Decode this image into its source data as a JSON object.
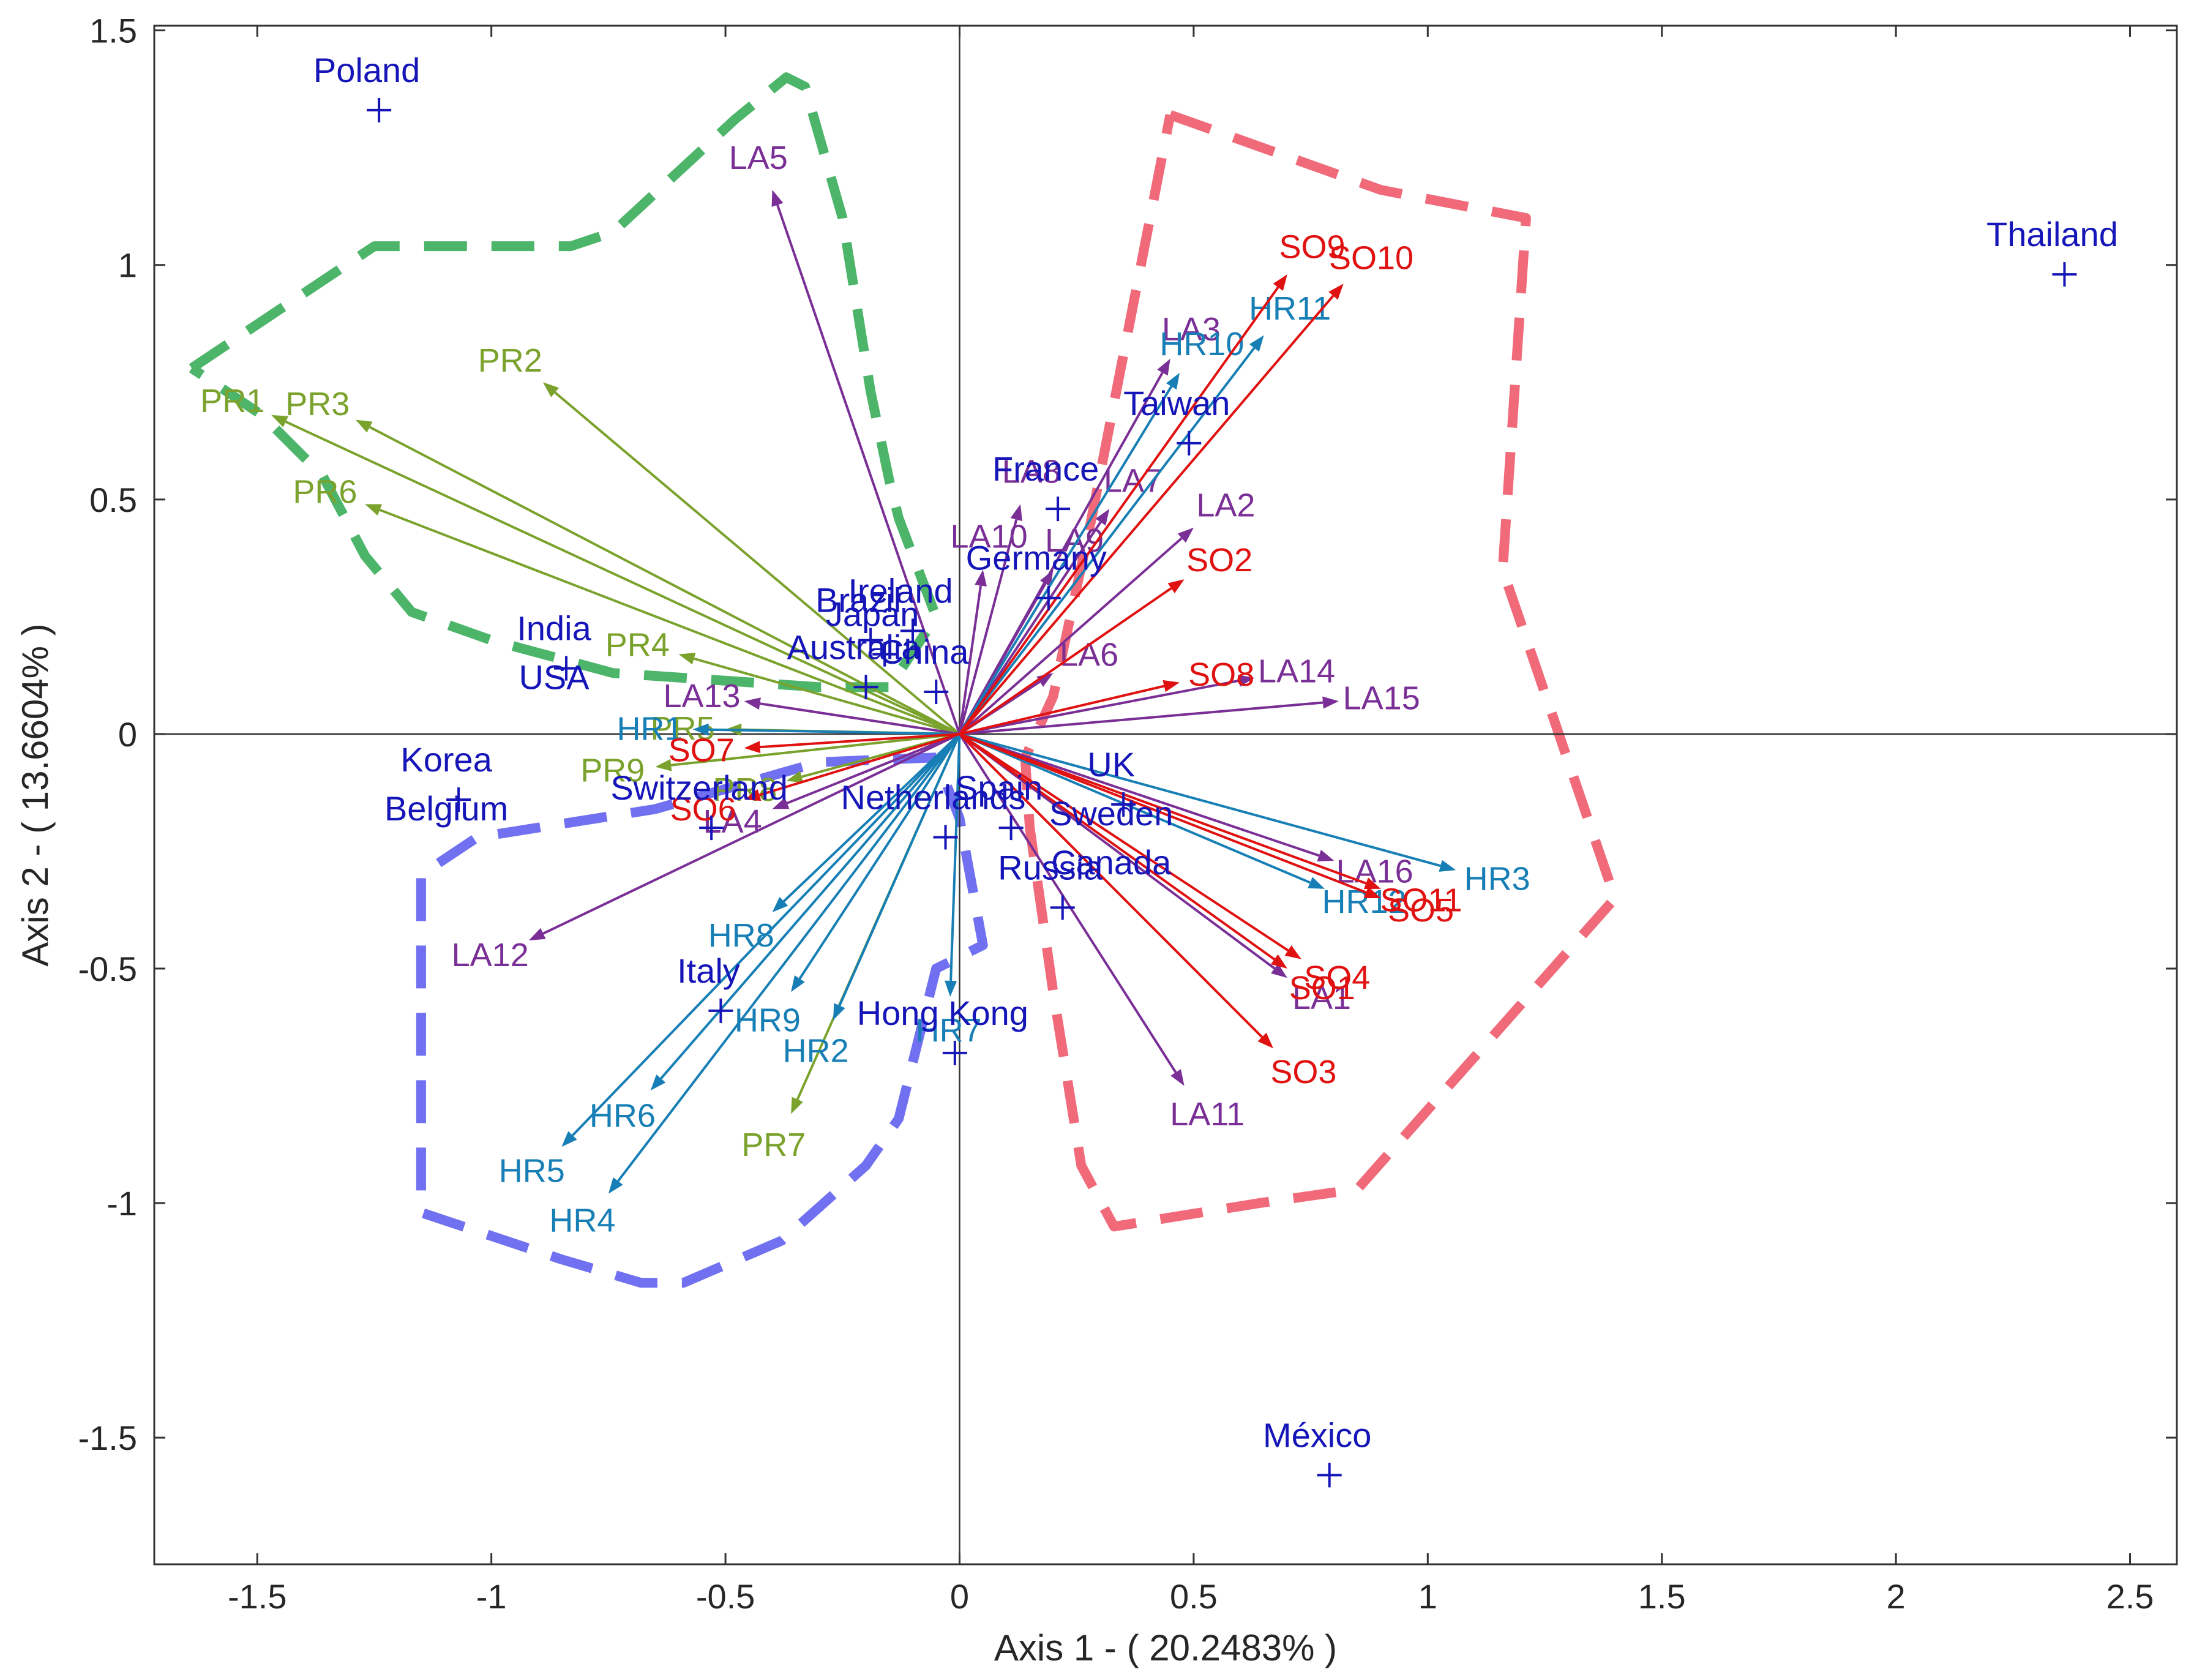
{
  "chart_data": {
    "type": "scatter",
    "subtype": "biplot",
    "xlabel": "Axis 1 - ( 20.2483% )",
    "ylabel": "Axis 2 - ( 13.6604% )",
    "xlim": [
      -1.72,
      2.6
    ],
    "ylim": [
      -1.77,
      1.51
    ],
    "xticks": [
      -1.5,
      -1,
      -0.5,
      0,
      0.5,
      1,
      1.5,
      2,
      2.5
    ],
    "yticks": [
      -1.5,
      -1,
      -0.5,
      0,
      0.5,
      1,
      1.5
    ],
    "grid": false,
    "zero_lines": true,
    "colors": {
      "country": "#1515b8",
      "PR": "#7aa22c",
      "LA": "#7a2f96",
      "HR": "#177fb5",
      "SO": "#e01111",
      "green_hull": "#4cb56a",
      "red_hull": "#f06a7a",
      "blue_hull": "#7070f0"
    },
    "countries": [
      {
        "label": "Poland",
        "x": -1.24,
        "y": 1.33
      },
      {
        "label": "Thailand",
        "x": 2.36,
        "y": 0.98
      },
      {
        "label": "India",
        "x": -0.84,
        "y": 0.14
      },
      {
        "label": "USA",
        "x": -0.84,
        "y": 0.14
      },
      {
        "label": "Korea",
        "x": -1.07,
        "y": -0.14
      },
      {
        "label": "Belgium",
        "x": -1.07,
        "y": -0.14
      },
      {
        "label": "Switzerland",
        "x": -0.53,
        "y": -0.2
      },
      {
        "label": "Ireland",
        "x": -0.1,
        "y": 0.22
      },
      {
        "label": "Brazil",
        "x": -0.19,
        "y": 0.2
      },
      {
        "label": "Japan",
        "x": -0.16,
        "y": 0.17
      },
      {
        "label": "China",
        "x": -0.05,
        "y": 0.09
      },
      {
        "label": "Australia",
        "x": -0.2,
        "y": 0.1
      },
      {
        "label": "France",
        "x": 0.21,
        "y": 0.48
      },
      {
        "label": "Taiwan",
        "x": 0.49,
        "y": 0.62
      },
      {
        "label": "Germany",
        "x": 0.19,
        "y": 0.29
      },
      {
        "label": "UK",
        "x": 0.35,
        "y": -0.15
      },
      {
        "label": "Sweden",
        "x": 0.35,
        "y": -0.15
      },
      {
        "label": "Canada",
        "x": 0.35,
        "y": -0.15
      },
      {
        "label": "Spain",
        "x": 0.11,
        "y": -0.2
      },
      {
        "label": "Netherlands",
        "x": -0.03,
        "y": -0.22
      },
      {
        "label": "Russia",
        "x": 0.22,
        "y": -0.37
      },
      {
        "label": "Italy",
        "x": -0.51,
        "y": -0.59
      },
      {
        "label": "Hong Kong",
        "x": -0.01,
        "y": -0.68
      },
      {
        "label": "México",
        "x": 0.79,
        "y": -1.58
      }
    ],
    "series": [
      {
        "group": "PR",
        "vectors": [
          {
            "label": "PR1",
            "x": -1.47,
            "y": 0.68
          },
          {
            "label": "PR2",
            "x": -0.89,
            "y": 0.75
          },
          {
            "label": "PR3",
            "x": -1.29,
            "y": 0.67
          },
          {
            "label": "PR4",
            "x": -0.6,
            "y": 0.17
          },
          {
            "label": "PR5",
            "x": -0.5,
            "y": 0.01
          },
          {
            "label": "PR6",
            "x": -1.27,
            "y": 0.49
          },
          {
            "label": "PR7",
            "x": -0.36,
            "y": -0.81
          },
          {
            "label": "PR8",
            "x": -0.37,
            "y": -0.1
          },
          {
            "label": "PR9",
            "x": -0.65,
            "y": -0.07
          }
        ]
      },
      {
        "group": "LA",
        "vectors": [
          {
            "label": "LA1",
            "x": 0.7,
            "y": -0.52
          },
          {
            "label": "LA2",
            "x": 0.5,
            "y": 0.44
          },
          {
            "label": "LA3",
            "x": 0.45,
            "y": 0.8
          },
          {
            "label": "LA4",
            "x": -0.4,
            "y": -0.16
          },
          {
            "label": "LA5",
            "x": -0.4,
            "y": 1.16
          },
          {
            "label": "LA6",
            "x": 0.2,
            "y": 0.13
          },
          {
            "label": "LA7",
            "x": 0.32,
            "y": 0.48
          },
          {
            "label": "LA8",
            "x": 0.13,
            "y": 0.49
          },
          {
            "label": "LA9",
            "x": 0.2,
            "y": 0.35
          },
          {
            "label": "LA10",
            "x": 0.05,
            "y": 0.35
          },
          {
            "label": "LA11",
            "x": 0.48,
            "y": -0.75
          },
          {
            "label": "LA12",
            "x": -0.92,
            "y": -0.44
          },
          {
            "label": "LA13",
            "x": -0.46,
            "y": 0.07
          },
          {
            "label": "LA14",
            "x": 0.63,
            "y": 0.12
          },
          {
            "label": "LA15",
            "x": 0.81,
            "y": 0.07
          },
          {
            "label": "LA16",
            "x": 0.8,
            "y": -0.27
          }
        ]
      },
      {
        "group": "HR",
        "vectors": [
          {
            "label": "HR1",
            "x": -0.57,
            "y": 0.01
          },
          {
            "label": "HR2",
            "x": -0.27,
            "y": -0.61
          },
          {
            "label": "HR3",
            "x": 1.06,
            "y": -0.29
          },
          {
            "label": "HR4",
            "x": -0.75,
            "y": -0.98
          },
          {
            "label": "HR5",
            "x": -0.85,
            "y": -0.88
          },
          {
            "label": "HR6",
            "x": -0.66,
            "y": -0.76
          },
          {
            "label": "HR7",
            "x": -0.02,
            "y": -0.56
          },
          {
            "label": "HR8",
            "x": -0.4,
            "y": -0.38
          },
          {
            "label": "HR9",
            "x": -0.36,
            "y": -0.55
          },
          {
            "label": "HR10",
            "x": 0.47,
            "y": 0.77
          },
          {
            "label": "HR11",
            "x": 0.65,
            "y": 0.85
          },
          {
            "label": "HR12",
            "x": 0.78,
            "y": -0.33
          }
        ]
      },
      {
        "group": "SO",
        "vectors": [
          {
            "label": "SO1",
            "x": 0.7,
            "y": -0.5
          },
          {
            "label": "SO2",
            "x": 0.48,
            "y": 0.33
          },
          {
            "label": "SO3",
            "x": 0.67,
            "y": -0.67
          },
          {
            "label": "SO4",
            "x": 0.73,
            "y": -0.48
          },
          {
            "label": "SO5",
            "x": 0.9,
            "y": -0.35
          },
          {
            "label": "SO6",
            "x": -0.46,
            "y": -0.14
          },
          {
            "label": "SO7",
            "x": -0.46,
            "y": -0.03
          },
          {
            "label": "SO8",
            "x": 0.47,
            "y": 0.11
          },
          {
            "label": "SO9",
            "x": 0.7,
            "y": 0.98
          },
          {
            "label": "SO10",
            "x": 0.82,
            "y": 0.96
          },
          {
            "label": "SO11",
            "x": 0.9,
            "y": -0.33
          }
        ]
      }
    ],
    "hulls": [
      {
        "color_key": "green_hull",
        "points": [
          [
            -1.64,
            0.78
          ],
          [
            -1.25,
            1.04
          ],
          [
            -0.83,
            1.04
          ],
          [
            -0.74,
            1.07
          ],
          [
            -0.48,
            1.31
          ],
          [
            -0.37,
            1.4
          ],
          [
            -0.33,
            1.38
          ],
          [
            -0.25,
            1.1
          ],
          [
            -0.19,
            0.73
          ],
          [
            -0.15,
            0.54
          ],
          [
            -0.13,
            0.46
          ],
          [
            -0.05,
            0.25
          ],
          [
            -0.15,
            0.1
          ],
          [
            -0.3,
            0.1
          ],
          [
            -0.74,
            0.13
          ],
          [
            -1.0,
            0.2
          ],
          [
            -1.17,
            0.26
          ],
          [
            -1.27,
            0.38
          ],
          [
            -1.36,
            0.55
          ],
          [
            -1.49,
            0.68
          ],
          [
            -1.64,
            0.78
          ]
        ]
      },
      {
        "color_key": "red_hull",
        "points": [
          [
            0.45,
            1.32
          ],
          [
            0.9,
            1.16
          ],
          [
            1.21,
            1.1
          ],
          [
            1.16,
            0.35
          ],
          [
            1.4,
            -0.35
          ],
          [
            0.85,
            -0.97
          ],
          [
            0.64,
            -1.0
          ],
          [
            0.33,
            -1.05
          ],
          [
            0.26,
            -0.92
          ],
          [
            0.2,
            -0.55
          ],
          [
            0.15,
            -0.2
          ],
          [
            0.14,
            -0.05
          ],
          [
            0.2,
            0.08
          ],
          [
            0.28,
            0.45
          ],
          [
            0.45,
            1.32
          ]
        ]
      },
      {
        "color_key": "blue_hull",
        "points": [
          [
            -0.05,
            -0.05
          ],
          [
            -0.3,
            -0.06
          ],
          [
            -0.65,
            -0.16
          ],
          [
            -1.03,
            -0.22
          ],
          [
            -1.15,
            -0.3
          ],
          [
            -1.15,
            -1.02
          ],
          [
            -0.85,
            -1.12
          ],
          [
            -0.68,
            -1.17
          ],
          [
            -0.59,
            -1.17
          ],
          [
            -0.38,
            -1.08
          ],
          [
            -0.2,
            -0.92
          ],
          [
            -0.13,
            -0.82
          ],
          [
            -0.05,
            -0.5
          ],
          [
            0.05,
            -0.45
          ],
          [
            0.0,
            -0.18
          ],
          [
            -0.05,
            -0.05
          ]
        ]
      }
    ]
  }
}
